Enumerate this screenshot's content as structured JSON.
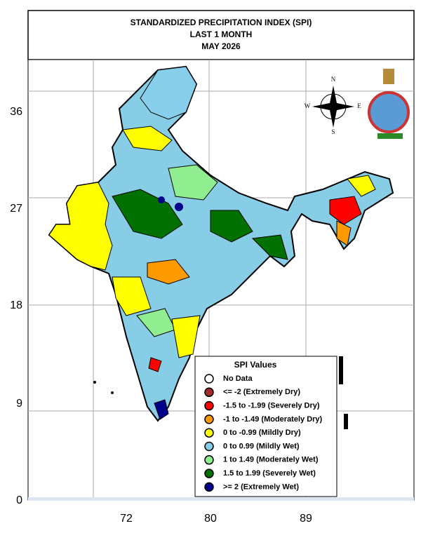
{
  "header": {
    "title_lines": [
      "STANDARDIZED PRECIPITATION INDEX (SPI)",
      "LAST 1 MONTH",
      "MAY 2026"
    ]
  },
  "axes": {
    "y_labels": [
      36,
      27,
      18,
      9,
      0
    ],
    "x_labels": [
      72,
      80,
      89
    ]
  },
  "compass": {
    "n": "N",
    "s": "S",
    "e": "E",
    "w": "W"
  },
  "legend": {
    "title": "SPI Values",
    "items": [
      {
        "label": "No Data",
        "color": "#ffffff"
      },
      {
        "label": "<= -2 (Extremely Dry)",
        "color": "#a52a2a"
      },
      {
        "label": "-1.5 to -1.99 (Severely Dry)",
        "color": "#ff0000"
      },
      {
        "label": "-1 to -1.49 (Moderately Dry)",
        "color": "#ff9900"
      },
      {
        "label": "0 to -0.99 (Mildly  Dry)",
        "color": "#ffff00"
      },
      {
        "label": "0 to 0.99 (Mildly  Wet)",
        "color": "#87cde6"
      },
      {
        "label": "1 to 1.49 (Moderately Wet)",
        "color": "#90ee90"
      },
      {
        "label": "1.5 to 1.99 (Severely Wet)",
        "color": "#007000"
      },
      {
        "label": ">= 2 (Extremely Wet)",
        "color": "#00008b"
      }
    ]
  }
}
